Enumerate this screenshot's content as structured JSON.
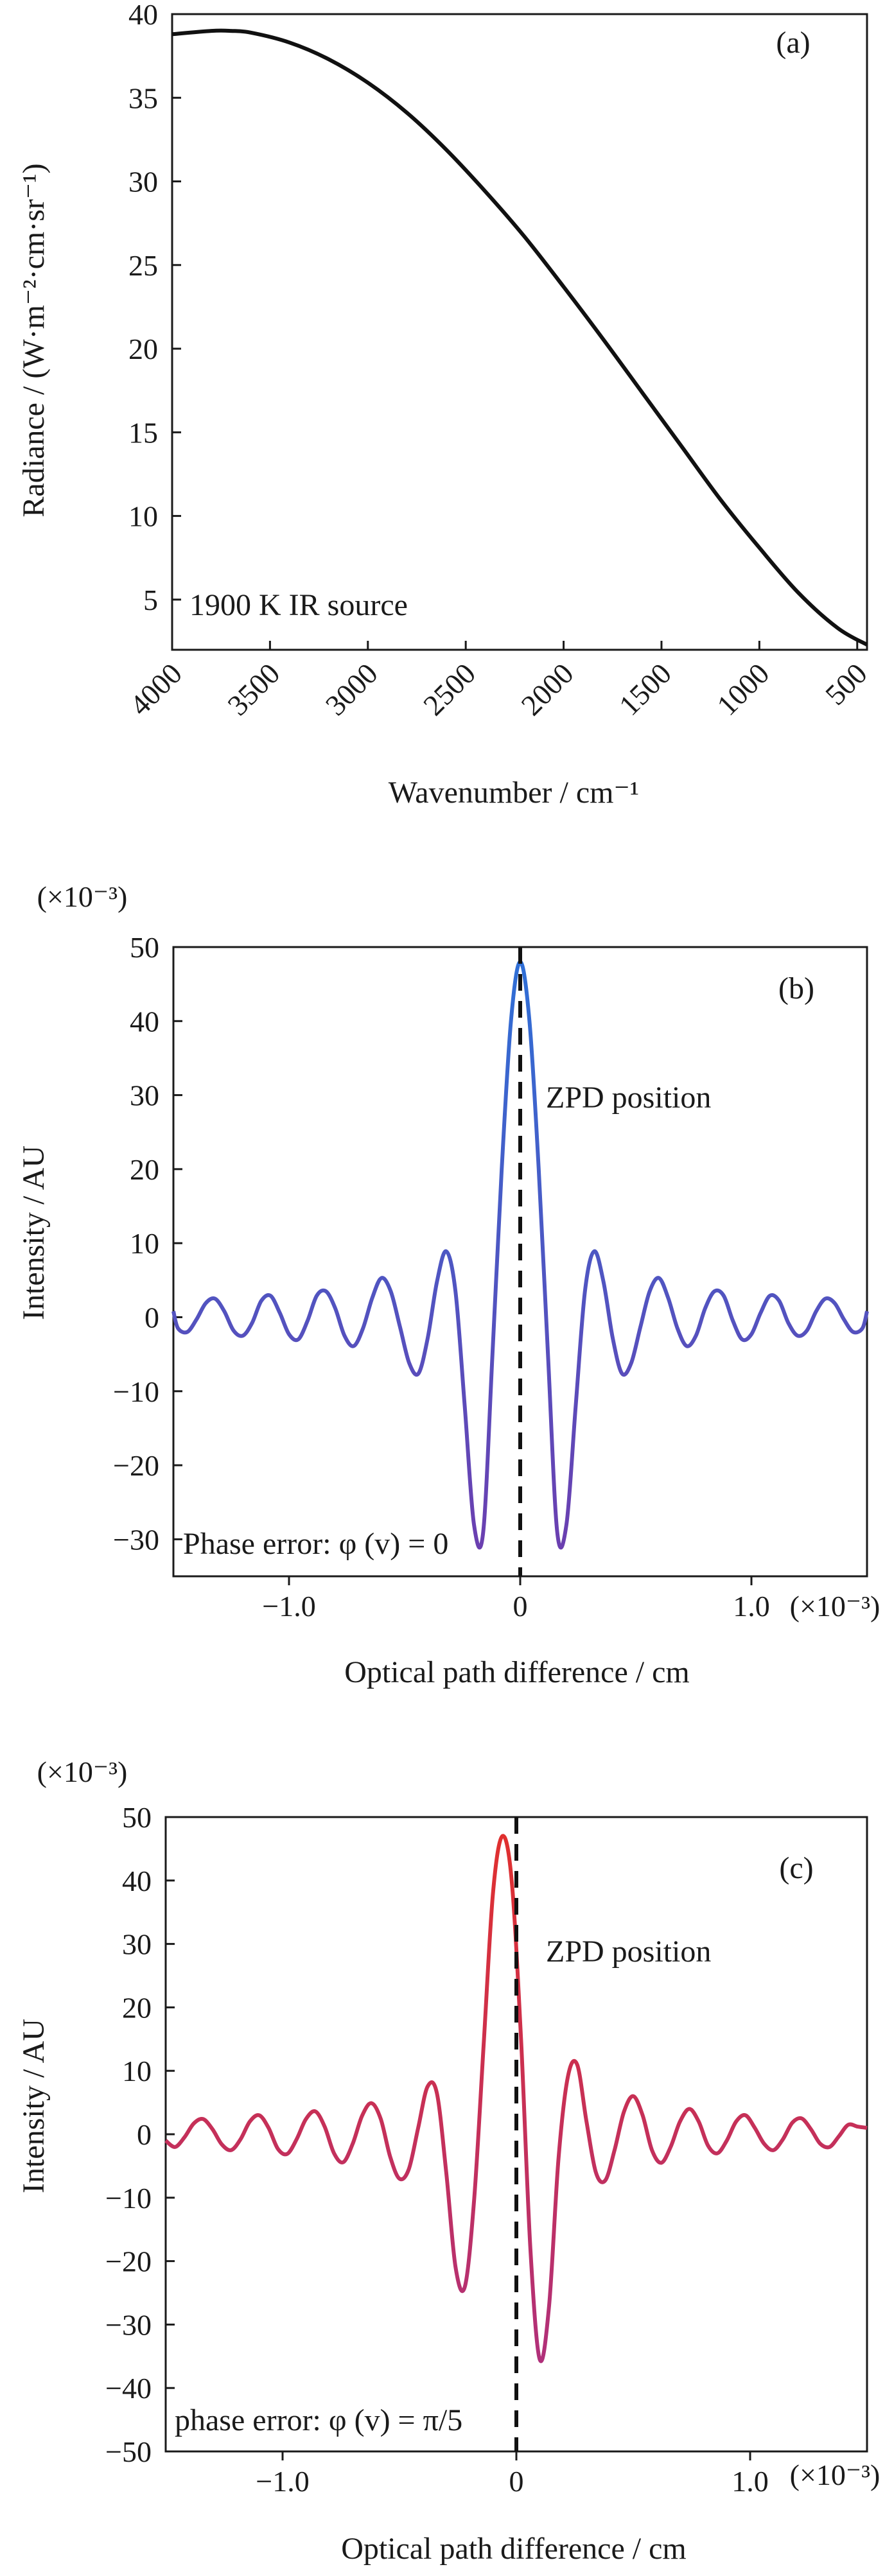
{
  "chart_data": [
    {
      "type": "line",
      "panel_label": "(a)",
      "annotation": "1900 K IR source",
      "xlabel": "Wavenumber / cm⁻¹",
      "ylabel": "Radiance / (W·m⁻²·cm·sr⁻¹)",
      "xlim": [
        4000,
        450
      ],
      "ylim": [
        2,
        40
      ],
      "xticks": [
        4000,
        3500,
        3000,
        2500,
        2000,
        1500,
        1000,
        500
      ],
      "yticks": [
        5,
        10,
        15,
        20,
        25,
        30,
        35,
        40
      ],
      "grid": false,
      "color": "#111111",
      "series": [
        {
          "x": [
            4000,
            3800,
            3700,
            3600,
            3400,
            3200,
            3000,
            2800,
            2600,
            2400,
            2200,
            2000,
            1800,
            1600,
            1400,
            1200,
            1000,
            800,
            600,
            450
          ],
          "y": [
            38.8,
            39.0,
            39.0,
            38.9,
            38.3,
            37.3,
            35.9,
            34.1,
            31.9,
            29.4,
            26.7,
            23.7,
            20.6,
            17.4,
            14.2,
            11.0,
            8.1,
            5.4,
            3.3,
            2.3
          ]
        }
      ]
    },
    {
      "type": "line",
      "panel_label": "(b)",
      "annotation": "ZPD position",
      "phase_text": "Phase error: φ (v) = 0",
      "xlabel": "Optical path difference / cm",
      "ylabel": "Intensity / AU",
      "y_multiplier": "(×10⁻³)",
      "x_multiplier": "(×10⁻³)",
      "xlim": [
        -1.5,
        1.5
      ],
      "ylim": [
        -35,
        50
      ],
      "xticks": [
        -1.0,
        0,
        1.0
      ],
      "xtick_labels": [
        "−1.0",
        "0",
        "1.0"
      ],
      "yticks": [
        -30,
        -20,
        -10,
        0,
        10,
        20,
        30,
        40,
        50
      ],
      "ytick_labels": [
        "−30",
        "−20",
        "−10",
        "0",
        "10",
        "20",
        "30",
        "40",
        "50"
      ],
      "zpd_x": 0,
      "grid": false,
      "colors": [
        "#2f6fd6",
        "#6b3fb0"
      ],
      "series": [
        {
          "x": [
            -1.5,
            -1.48,
            -1.44,
            -1.4,
            -1.36,
            -1.32,
            -1.28,
            -1.24,
            -1.2,
            -1.16,
            -1.12,
            -1.08,
            -1.04,
            -1.0,
            -0.96,
            -0.92,
            -0.88,
            -0.84,
            -0.8,
            -0.76,
            -0.72,
            -0.68,
            -0.64,
            -0.6,
            -0.56,
            -0.52,
            -0.48,
            -0.44,
            -0.4,
            -0.36,
            -0.32,
            -0.28,
            -0.24,
            -0.2,
            -0.16,
            -0.12,
            -0.08,
            -0.04,
            0.0,
            0.04,
            0.08,
            0.12,
            0.16,
            0.2,
            0.24,
            0.28,
            0.32,
            0.36,
            0.4,
            0.44,
            0.48,
            0.52,
            0.56,
            0.6,
            0.64,
            0.68,
            0.72,
            0.76,
            0.8,
            0.84,
            0.88,
            0.92,
            0.96,
            1.0,
            1.04,
            1.08,
            1.12,
            1.16,
            1.2,
            1.24,
            1.28,
            1.32,
            1.36,
            1.4,
            1.44,
            1.48,
            1.5
          ],
          "y": [
            0.8,
            -1.5,
            -2.0,
            -0.3,
            1.9,
            2.5,
            0.8,
            -1.8,
            -2.5,
            -0.8,
            2.2,
            2.9,
            0.6,
            -2.3,
            -3.0,
            -0.5,
            2.9,
            3.5,
            1.2,
            -2.5,
            -3.9,
            -1.5,
            2.6,
            5.3,
            3.5,
            -1.3,
            -6.2,
            -7.6,
            -2.8,
            4.8,
            8.9,
            3.5,
            -12.0,
            -28.0,
            -29.0,
            -5.0,
            20.0,
            40.0,
            48.0,
            40.0,
            20.0,
            -5.0,
            -29.0,
            -28.0,
            -12.0,
            3.5,
            8.9,
            4.8,
            -2.8,
            -7.6,
            -6.2,
            -1.3,
            3.5,
            5.3,
            2.6,
            -1.5,
            -3.9,
            -2.5,
            1.2,
            3.5,
            2.9,
            -0.5,
            -3.0,
            -2.3,
            0.6,
            2.9,
            2.2,
            -0.8,
            -2.5,
            -1.8,
            0.8,
            2.5,
            1.9,
            -0.3,
            -2.0,
            -1.5,
            0.8
          ]
        }
      ]
    },
    {
      "type": "line",
      "panel_label": "(c)",
      "annotation": "ZPD position",
      "phase_text": "phase error:  φ (v) = π/5",
      "xlabel": "Optical path difference / cm",
      "ylabel": "Intensity / AU",
      "y_multiplier": "(×10⁻³)",
      "x_multiplier": "(×10⁻³)",
      "xlim": [
        -1.5,
        1.5
      ],
      "ylim": [
        -50,
        50
      ],
      "xticks": [
        -1.0,
        0,
        1.0
      ],
      "xtick_labels": [
        "−1.0",
        "0",
        "1.0"
      ],
      "yticks": [
        -50,
        -40,
        -30,
        -20,
        -10,
        0,
        10,
        20,
        30,
        40,
        50
      ],
      "ytick_labels": [
        "−50",
        "−40",
        "−30",
        "−20",
        "−10",
        "0",
        "10",
        "20",
        "30",
        "40",
        "50"
      ],
      "zpd_x": 0,
      "grid": false,
      "colors": [
        "#e0302f",
        "#b0307a"
      ],
      "series": [
        {
          "x": [
            -1.5,
            -1.46,
            -1.42,
            -1.38,
            -1.34,
            -1.3,
            -1.26,
            -1.22,
            -1.18,
            -1.14,
            -1.1,
            -1.06,
            -1.02,
            -0.98,
            -0.94,
            -0.9,
            -0.86,
            -0.82,
            -0.78,
            -0.74,
            -0.7,
            -0.66,
            -0.62,
            -0.58,
            -0.54,
            -0.5,
            -0.46,
            -0.42,
            -0.38,
            -0.34,
            -0.3,
            -0.26,
            -0.22,
            -0.18,
            -0.14,
            -0.1,
            -0.06,
            -0.02,
            0.02,
            0.06,
            0.1,
            0.14,
            0.18,
            0.22,
            0.26,
            0.3,
            0.34,
            0.38,
            0.42,
            0.46,
            0.5,
            0.54,
            0.58,
            0.62,
            0.66,
            0.7,
            0.74,
            0.78,
            0.82,
            0.86,
            0.9,
            0.94,
            0.98,
            1.02,
            1.06,
            1.1,
            1.14,
            1.18,
            1.22,
            1.26,
            1.3,
            1.34,
            1.38,
            1.42,
            1.46,
            1.5
          ],
          "y": [
            -1.0,
            -2.0,
            -0.5,
            1.7,
            2.4,
            0.8,
            -1.6,
            -2.5,
            -0.8,
            2.0,
            3.0,
            1.0,
            -2.3,
            -3.1,
            -0.8,
            2.4,
            3.6,
            1.2,
            -3.0,
            -4.4,
            -1.5,
            2.9,
            4.9,
            2.4,
            -3.5,
            -7.0,
            -5.5,
            1.0,
            7.5,
            6.5,
            -6.0,
            -21.0,
            -24.0,
            -10.0,
            14.0,
            38.0,
            47.0,
            40.0,
            15.0,
            -18.0,
            -35.5,
            -27.0,
            -4.0,
            9.0,
            11.0,
            2.0,
            -6.0,
            -7.3,
            -2.5,
            3.5,
            6.0,
            3.0,
            -2.5,
            -4.5,
            -2.0,
            2.0,
            4.0,
            2.0,
            -1.8,
            -3.0,
            -1.0,
            2.0,
            3.0,
            1.0,
            -1.5,
            -2.5,
            -0.8,
            1.8,
            2.5,
            0.8,
            -1.5,
            -2.0,
            -0.3,
            1.5,
            1.2,
            1.0
          ]
        }
      ]
    }
  ]
}
